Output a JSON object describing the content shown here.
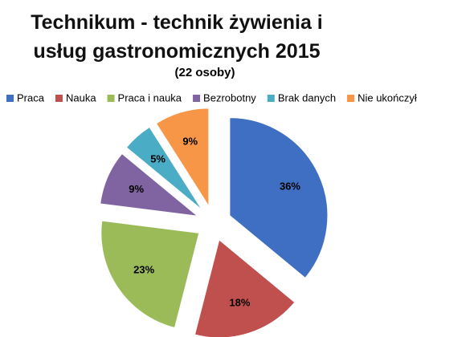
{
  "chart_data": {
    "type": "pie",
    "title": "Technikum - technik żywienia i usług gastronomicznych 2015",
    "subtitle": "(22 osoby)",
    "categories": [
      "Praca",
      "Nauka",
      "Praca i nauka",
      "Bezrobotny",
      "Brak danych",
      "Nie ukończył"
    ],
    "values": [
      36,
      18,
      23,
      9,
      5,
      9
    ],
    "value_labels": [
      "36%",
      "18%",
      "23%",
      "9%",
      "5%",
      "9%"
    ],
    "colors": [
      "#3f6fc2",
      "#c0504d",
      "#9bbb59",
      "#8064a2",
      "#4bacc6",
      "#f79646"
    ],
    "legend": "top"
  }
}
